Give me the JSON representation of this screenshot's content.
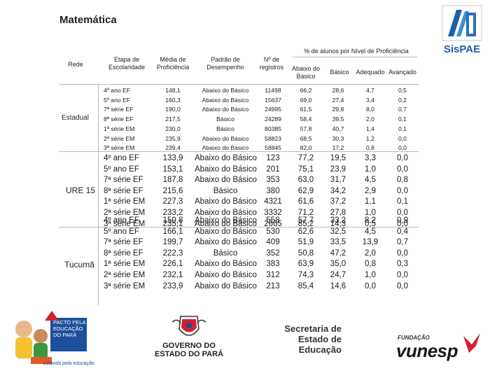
{
  "title": "Matemática",
  "logo_text": "SisPAE",
  "headers": {
    "rede": "Rede",
    "etapa": "Etapa de Escolaridade",
    "media": "Média de Proficiência",
    "padrao": "Padrão de Desempenho",
    "registros": "Nº de registros",
    "group": "% de alunos por Nível de Proficiência",
    "abaixo": "Abaixo do Básico",
    "basico": "Básico",
    "adequado": "Adequado",
    "avancado": "Avançado"
  },
  "groups": [
    {
      "rede": "Estadual",
      "rows": [
        {
          "etapa": "4º ano EF",
          "media": "148,1",
          "padrao": "Abaixo do Básico",
          "registros": "11498",
          "abaixo": "66,2",
          "basico": "28,6",
          "adequado": "4,7",
          "avancado": "0,5"
        },
        {
          "etapa": "5º ano EF",
          "media": "160,3",
          "padrao": "Abaixo do Básico",
          "registros": "15637",
          "abaixo": "69,0",
          "basico": "27,4",
          "adequado": "3,4",
          "avancado": "0,2"
        },
        {
          "etapa": "7ª série EF",
          "media": "190,0",
          "padrao": "Abaixo do Básico",
          "registros": "24995",
          "abaixo": "61,5",
          "basico": "29,8",
          "adequado": "8,0",
          "avancado": "0,7"
        },
        {
          "etapa": "8ª série EF",
          "media": "217,5",
          "padrao": "Básico",
          "registros": "24289",
          "abaixo": "58,4",
          "basico": "39,5",
          "adequado": "2,0",
          "avancado": "0,1"
        },
        {
          "etapa": "1ª série EM",
          "media": "230,0",
          "padrao": "Básico",
          "registros": "80385",
          "abaixo": "57,8",
          "basico": "40,7",
          "adequado": "1,4",
          "avancado": "0,1"
        },
        {
          "etapa": "2ª série EM",
          "media": "235,9",
          "padrao": "Abaixo do Básico",
          "registros": "58823",
          "abaixo": "68,5",
          "basico": "30,3",
          "adequado": "1,2",
          "avancado": "0,0"
        },
        {
          "etapa": "3ª série EM",
          "media": "239,4",
          "padrao": "Abaixo do Básico",
          "registros": "58845",
          "abaixo": "82,0",
          "basico": "17,2",
          "adequado": "0,8",
          "avancado": "0,0"
        }
      ]
    },
    {
      "rede": "URE 15",
      "rows": [
        {
          "etapa": "4º ano EF",
          "media": "133,9",
          "padrao": "Abaixo do Básico",
          "registros": "123",
          "abaixo": "77,2",
          "basico": "19,5",
          "adequado": "3,3",
          "avancado": "0,0"
        },
        {
          "etapa": "5º ano EF",
          "media": "153,1",
          "padrao": "Abaixo do Básico",
          "registros": "201",
          "abaixo": "75,1",
          "basico": "23,9",
          "adequado": "1,0",
          "avancado": "0,0"
        },
        {
          "etapa": "7ª série EF",
          "media": "187,8",
          "padrao": "Abaixo do Básico",
          "registros": "353",
          "abaixo": "63,0",
          "basico": "31,7",
          "adequado": "4,5",
          "avancado": "0,8"
        },
        {
          "etapa": "8ª série EF",
          "media": "215,6",
          "padrao": "Básico",
          "registros": "380",
          "abaixo": "62,9",
          "basico": "34,2",
          "adequado": "2,9",
          "avancado": "0,0"
        },
        {
          "etapa": "1ª série EM",
          "media": "227,3",
          "padrao": "Abaixo do Básico",
          "registros": "4321",
          "abaixo": "61,6",
          "basico": "37,2",
          "adequado": "1,1",
          "avancado": "0,1"
        },
        {
          "etapa": "2ª série EM",
          "media": "233,2",
          "padrao": "Abaixo do Básico",
          "registros": "3332",
          "abaixo": "71,2",
          "basico": "27,8",
          "adequado": "1,0",
          "avancado": "0,0"
        },
        {
          "etapa": "3ª série EM",
          "media": "235,1",
          "padrao": "Abaixo do Básico",
          "registros": "2665",
          "abaixo": "85,2",
          "basico": "14,3",
          "adequado": "0,5",
          "avancado": "0,0"
        }
      ]
    },
    {
      "rede": "Tucumã",
      "rows": [
        {
          "etapa": "4º ano EF",
          "media": "150,8",
          "padrao": "Abaixo do Básico",
          "registros": "558",
          "abaixo": "57,7",
          "basico": "33,2",
          "adequado": "8,2",
          "avancado": "0,9"
        },
        {
          "etapa": "5º ano EF",
          "media": "166,1",
          "padrao": "Abaixo do Básico",
          "registros": "530",
          "abaixo": "62,6",
          "basico": "32,5",
          "adequado": "4,5",
          "avancado": "0,4"
        },
        {
          "etapa": "7ª série EF",
          "media": "199,7",
          "padrao": "Abaixo do Básico",
          "registros": "409",
          "abaixo": "51,9",
          "basico": "33,5",
          "adequado": "13,9",
          "avancado": "0,7"
        },
        {
          "etapa": "8ª série EF",
          "media": "222,3",
          "padrao": "Básico",
          "registros": "352",
          "abaixo": "50,8",
          "basico": "47,2",
          "adequado": "2,0",
          "avancado": "0,0"
        },
        {
          "etapa": "1ª série EM",
          "media": "226,1",
          "padrao": "Abaixo do Básico",
          "registros": "383",
          "abaixo": "63,9",
          "basico": "35,0",
          "adequado": "0,8",
          "avancado": "0,3"
        },
        {
          "etapa": "2ª série EM",
          "media": "232,1",
          "padrao": "Abaixo do Básico",
          "registros": "312",
          "abaixo": "74,3",
          "basico": "24,7",
          "adequado": "1,0",
          "avancado": "0,0"
        },
        {
          "etapa": "3ª série EM",
          "media": "233,9",
          "padrao": "Abaixo do Básico",
          "registros": "213",
          "abaixo": "85,4",
          "basico": "14,6",
          "adequado": "0,0",
          "avancado": "0,0"
        }
      ]
    }
  ],
  "footer": {
    "pacto": [
      "PACTO PELA",
      "EDUCAÇÃO",
      "DO PARÁ"
    ],
    "pacto_slogan": "Lutando pela educação",
    "governo": [
      "GOVERNO DO",
      "ESTADO DO PARÁ"
    ],
    "secretaria": [
      "Secretaria de",
      "Estado de",
      "Educação"
    ],
    "fundacao": "FUNDAÇÃO",
    "vunesp": "vunesp"
  },
  "colors": {
    "sispae_blue": "#1f5fa6",
    "vunesp_red": "#d4202a",
    "pacto_blue": "#1c4f9c"
  }
}
